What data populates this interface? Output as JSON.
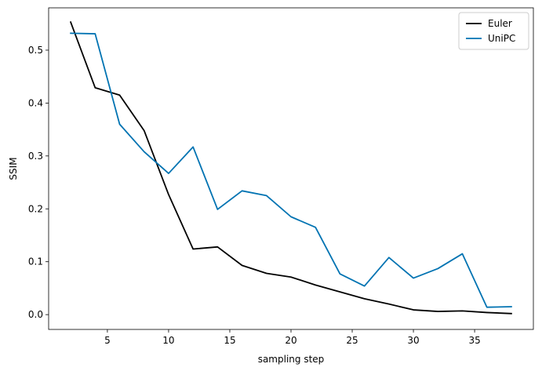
{
  "chart_data": {
    "type": "line",
    "title": "",
    "xlabel": "sampling step",
    "ylabel": "SSIM",
    "xlim": [
      0.2,
      39.8
    ],
    "ylim": [
      -0.028,
      0.58
    ],
    "xticks": [
      5,
      10,
      15,
      20,
      25,
      30,
      35
    ],
    "yticks": [
      0.0,
      0.1,
      0.2,
      0.3,
      0.4,
      0.5
    ],
    "xtick_labels": [
      "5",
      "10",
      "15",
      "20",
      "25",
      "30",
      "35"
    ],
    "ytick_labels": [
      "0.0",
      "0.1",
      "0.2",
      "0.3",
      "0.4",
      "0.5"
    ],
    "grid": false,
    "legend_position": "top-right",
    "x": [
      2,
      4,
      6,
      8,
      10,
      12,
      14,
      16,
      18,
      20,
      22,
      24,
      26,
      28,
      30,
      32,
      34,
      36,
      38
    ],
    "series": [
      {
        "name": "Euler",
        "color": "#000000",
        "values": [
          0.553,
          0.429,
          0.415,
          0.348,
          0.227,
          0.124,
          0.128,
          0.093,
          0.078,
          0.071,
          0.056,
          0.043,
          0.03,
          0.02,
          0.009,
          0.006,
          0.007,
          0.004,
          0.002
        ]
      },
      {
        "name": "UniPC",
        "color": "#0173b2",
        "values": [
          0.532,
          0.531,
          0.36,
          0.308,
          0.267,
          0.317,
          0.199,
          0.234,
          0.225,
          0.185,
          0.165,
          0.077,
          0.054,
          0.108,
          0.069,
          0.087,
          0.115,
          0.014,
          0.015
        ]
      }
    ]
  }
}
